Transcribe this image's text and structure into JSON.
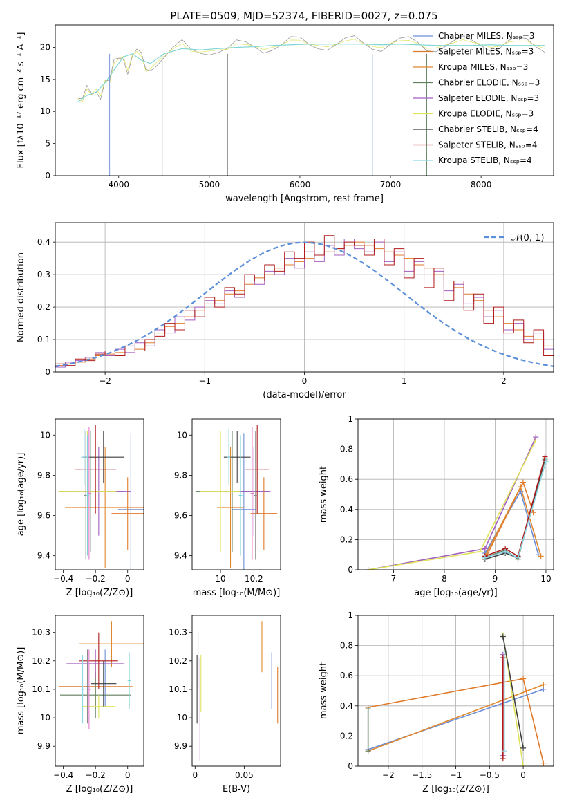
{
  "figure": {
    "title": "PLATE=0509, MJD=52374, FIBERID=0027, z=0.075"
  },
  "colors": {
    "grid": "#b0b0b0",
    "gauss": "#5b8fd9",
    "series": [
      "#6b8dd6",
      "#e07a2b",
      "#e0882e",
      "#5f7f5f",
      "#a35dc0",
      "#dfe35a",
      "#3f3f3f",
      "#b01c1c",
      "#8dd8e5",
      "#e47ccb",
      "#8a8a8a",
      "#7fd6d6"
    ]
  },
  "chart_data": [
    {
      "id": "spectrum",
      "type": "line",
      "title": "PLATE=0509, MJD=52374, FIBERID=0027, z=0.075",
      "xlabel": "wavelength [Angstrom, rest frame]",
      "ylabel": "Flux [fλ10⁻¹⁷ erg cm⁻² s⁻¹ A⁻¹]",
      "xlim": [
        3300,
        8800
      ],
      "ylim": [
        0,
        23.5
      ],
      "xticks": [
        4000,
        5000,
        6000,
        7000,
        8000
      ],
      "yticks": [
        0,
        5,
        10,
        15,
        20
      ],
      "grid": false,
      "legend_position": "top-right",
      "legend": [
        "Chabrier MILES, N_SSP=3",
        "Salpeter MILES, N_SSP=3",
        "Kroupa MILES, N_SSP=3",
        "Chabrier ELODIE, N_SSP=3",
        "Salpeter ELODIE, N_SSP=3",
        "Kroupa ELODIE, N_SSP=3",
        "Chabrier STELIB, N_SSP=4",
        "Salpeter STELIB, N_SSP=4",
        "Kroupa STELIB, N_SSP=4"
      ],
      "data_curve": {
        "x": [
          3550,
          3600,
          3650,
          3700,
          3750,
          3800,
          3850,
          3900,
          3950,
          4000,
          4050,
          4100,
          4150,
          4200,
          4250,
          4300,
          4350,
          4400,
          4500,
          4600,
          4700,
          4800,
          4900,
          5000,
          5100,
          5200,
          5300,
          5400,
          5500,
          5600,
          5700,
          5800,
          5900,
          6000,
          6100,
          6200,
          6300,
          6400,
          6500,
          6600,
          6700,
          6800,
          6900,
          7000,
          7100,
          7200,
          7300,
          7400,
          7500,
          7600,
          7700,
          7800,
          7900,
          8000,
          8100,
          8200,
          8300,
          8400,
          8500,
          8600,
          8700
        ],
        "y": [
          12,
          11,
          13,
          12.5,
          14,
          13,
          15,
          14,
          17,
          18,
          19,
          17,
          19,
          19,
          18,
          16,
          17,
          18,
          19,
          19.5,
          20,
          19,
          19.5,
          20,
          20,
          19.5,
          20,
          20,
          20.3,
          20.2,
          20.5,
          20.3,
          20.6,
          20.6,
          20.5,
          20.8,
          20.6,
          20.5,
          20.5,
          20.7,
          20.5,
          20.6,
          20.5,
          20.8,
          20.6,
          20.5,
          20.4,
          20.2,
          20.5,
          20.6,
          20.4,
          20.6,
          20.5,
          20.8,
          20.6,
          20.5,
          20.6,
          20.4,
          20.6,
          20.5,
          20.4
        ]
      },
      "model_curve": {
        "x": [
          3550,
          3650,
          3750,
          3850,
          3950,
          4050,
          4150,
          4250,
          4350,
          4500,
          4700,
          4900,
          5100,
          5300,
          5500,
          5700,
          5900,
          6100,
          6300,
          6500,
          6700,
          6900,
          7100,
          7300,
          7500,
          7700,
          7900,
          8100,
          8300,
          8500,
          8700
        ],
        "y": [
          11.5,
          12.5,
          13,
          14.5,
          16.5,
          18.5,
          19,
          18,
          17.5,
          19,
          19.8,
          19.6,
          19.8,
          20,
          20.1,
          20.3,
          20.4,
          20.5,
          20.5,
          20.5,
          20.5,
          20.4,
          20.5,
          20.4,
          20.3,
          20.3,
          20.3,
          20.4,
          20.3,
          20.3,
          20.3
        ]
      },
      "spikes": [
        {
          "x": 3900,
          "y": 0
        },
        {
          "x": 4480,
          "y": 0
        },
        {
          "x": 5200,
          "y": 0
        },
        {
          "x": 6800,
          "y": 0
        },
        {
          "x": 7400,
          "y": 0
        }
      ]
    },
    {
      "id": "residuals",
      "type": "line",
      "xlabel": "(data-model)/error",
      "ylabel": "Normed distribution",
      "xlim": [
        -2.5,
        2.5
      ],
      "ylim": [
        0,
        0.46
      ],
      "xticks": [
        -2,
        -1,
        0,
        1,
        2
      ],
      "yticks": [
        0.0,
        0.1,
        0.2,
        0.3,
        0.4
      ],
      "grid": true,
      "legend_position": "top-right",
      "legend": [
        "𝒩(0, 1)"
      ],
      "bin_edges_start": -2.5,
      "bin_width": 0.1,
      "hist": [
        [
          0.02,
          0.025,
          0.03,
          0.04,
          0.05,
          0.055,
          0.06,
          0.065,
          0.07,
          0.09,
          0.12,
          0.14,
          0.15,
          0.17,
          0.19,
          0.21,
          0.22,
          0.24,
          0.25,
          0.27,
          0.29,
          0.3,
          0.32,
          0.33,
          0.34,
          0.35,
          0.36,
          0.37,
          0.38,
          0.39,
          0.4,
          0.39,
          0.38,
          0.37,
          0.36,
          0.35,
          0.33,
          0.32,
          0.3,
          0.28,
          0.26,
          0.24,
          0.22,
          0.19,
          0.17,
          0.15,
          0.13,
          0.11,
          0.1,
          0.08
        ],
        [
          0.015,
          0.03,
          0.035,
          0.045,
          0.06,
          0.05,
          0.07,
          0.06,
          0.09,
          0.08,
          0.13,
          0.12,
          0.17,
          0.16,
          0.2,
          0.22,
          0.21,
          0.25,
          0.23,
          0.28,
          0.27,
          0.31,
          0.3,
          0.35,
          0.32,
          0.37,
          0.34,
          0.39,
          0.36,
          0.41,
          0.38,
          0.37,
          0.4,
          0.34,
          0.37,
          0.31,
          0.34,
          0.28,
          0.31,
          0.25,
          0.27,
          0.21,
          0.23,
          0.17,
          0.19,
          0.13,
          0.15,
          0.1,
          0.12,
          0.07
        ],
        [
          0.025,
          0.02,
          0.04,
          0.035,
          0.055,
          0.065,
          0.05,
          0.08,
          0.065,
          0.1,
          0.11,
          0.15,
          0.13,
          0.19,
          0.17,
          0.23,
          0.2,
          0.26,
          0.24,
          0.3,
          0.28,
          0.33,
          0.31,
          0.37,
          0.35,
          0.4,
          0.36,
          0.42,
          0.38,
          0.4,
          0.39,
          0.36,
          0.41,
          0.33,
          0.38,
          0.29,
          0.35,
          0.26,
          0.32,
          0.22,
          0.28,
          0.19,
          0.24,
          0.15,
          0.2,
          0.12,
          0.16,
          0.09,
          0.13,
          0.05
        ]
      ],
      "gaussian": {
        "mean": 0,
        "sigma": 1
      }
    },
    {
      "id": "z-age",
      "type": "scatter",
      "xlabel": "Z [log₁₀(Z/Z⊙)]",
      "ylabel": "age  [log₁₀(age/yr)]",
      "xlim": [
        -0.45,
        0.1
      ],
      "ylim": [
        9.33,
        10.08
      ],
      "xticks": [
        -0.4,
        -0.2,
        0.0
      ],
      "yticks": [
        9.4,
        9.6,
        9.8,
        10.0
      ],
      "points": [
        {
          "x": 0.02,
          "y": 9.63,
          "xe": 0.08,
          "ye": 0.38
        },
        {
          "x": 0.0,
          "y": 9.61,
          "xe": 0.1,
          "ye": 0.18
        },
        {
          "x": -0.14,
          "y": 9.64,
          "xe": 0.25,
          "ye": 0.3
        },
        {
          "x": -0.23,
          "y": 9.72,
          "xe": 0.2,
          "ye": 0.3
        },
        {
          "x": -0.18,
          "y": 9.72,
          "xe": 0.2,
          "ye": 0.22
        },
        {
          "x": -0.25,
          "y": 9.72,
          "xe": 0.18,
          "ye": 0.3
        },
        {
          "x": -0.15,
          "y": 9.89,
          "xe": 0.13,
          "ye": 0.13
        },
        {
          "x": -0.2,
          "y": 9.83,
          "xe": 0.13,
          "ye": 0.22
        },
        {
          "x": -0.27,
          "y": 9.89,
          "xe": 0.02,
          "ye": 0.14
        },
        {
          "x": -0.24,
          "y": 9.71,
          "xe": 0.01,
          "ye": 0.33
        },
        {
          "x": -0.26,
          "y": 9.7,
          "xe": 0.01,
          "ye": 0.32
        },
        {
          "x": -0.25,
          "y": 9.7,
          "xe": 0.01,
          "ye": 0.3
        }
      ]
    },
    {
      "id": "mass-age",
      "type": "scatter",
      "xlabel": "mass [log₁₀(M/M⊙)]",
      "ylabel": "",
      "xlim": [
        9.83,
        10.36
      ],
      "ylim": [
        9.33,
        10.08
      ],
      "xticks": [
        10.0,
        10.2
      ],
      "yticks": [
        9.4,
        9.6,
        9.8,
        10.0
      ],
      "points": [
        {
          "x": 10.14,
          "y": 9.63,
          "xe": 0.07,
          "ye": 0.38
        },
        {
          "x": 10.26,
          "y": 9.61,
          "xe": 0.08,
          "ye": 0.18
        },
        {
          "x": 10.06,
          "y": 9.64,
          "xe": 0.08,
          "ye": 0.3
        },
        {
          "x": 10.07,
          "y": 9.72,
          "xe": 0.22,
          "ye": 0.3
        },
        {
          "x": 10.2,
          "y": 9.72,
          "xe": 0.1,
          "ye": 0.22
        },
        {
          "x": 10.0,
          "y": 9.72,
          "xe": 0.12,
          "ye": 0.3
        },
        {
          "x": 10.1,
          "y": 9.89,
          "xe": 0.08,
          "ye": 0.13
        },
        {
          "x": 10.22,
          "y": 9.83,
          "xe": 0.07,
          "ye": 0.22
        },
        {
          "x": 10.05,
          "y": 9.89,
          "xe": 0.01,
          "ye": 0.14
        },
        {
          "x": 10.19,
          "y": 9.71,
          "xe": 0.01,
          "ye": 0.33
        },
        {
          "x": 10.21,
          "y": 9.7,
          "xe": 0.01,
          "ye": 0.32
        },
        {
          "x": 10.12,
          "y": 9.7,
          "xe": 0.01,
          "ye": 0.3
        }
      ]
    },
    {
      "id": "age-weight",
      "type": "line",
      "xlabel": "age  [log₁₀(age/yr)]",
      "ylabel": "mass weight",
      "xlim": [
        6.3,
        10.15
      ],
      "ylim": [
        0,
        1.0
      ],
      "xticks": [
        7,
        8,
        9,
        10
      ],
      "yticks": [
        0.0,
        0.2,
        0.4,
        0.6,
        0.8,
        1.0
      ],
      "grid": true,
      "series": [
        {
          "x": [
            8.8,
            9.5,
            9.85
          ],
          "y": [
            0.11,
            0.52,
            0.1
          ]
        },
        {
          "x": [
            8.8,
            9.55,
            9.75
          ],
          "y": [
            0.07,
            0.58,
            0.38
          ]
        },
        {
          "x": [
            8.8,
            9.5,
            9.9
          ],
          "y": [
            0.09,
            0.55,
            0.09
          ]
        },
        {
          "x": [
            8.8,
            9.2,
            9.45,
            9.98
          ],
          "y": [
            0.08,
            0.13,
            0.07,
            0.73
          ]
        },
        {
          "x": [
            6.5,
            8.8,
            9.8
          ],
          "y": [
            0.0,
            0.14,
            0.88
          ]
        },
        {
          "x": [
            6.5,
            8.7,
            9.8
          ],
          "y": [
            0.0,
            0.12,
            0.86
          ]
        },
        {
          "x": [
            8.8,
            9.2,
            9.45,
            9.98
          ],
          "y": [
            0.07,
            0.11,
            0.08,
            0.74
          ]
        },
        {
          "x": [
            8.8,
            9.2,
            9.45,
            9.98
          ],
          "y": [
            0.09,
            0.14,
            0.09,
            0.75
          ]
        },
        {
          "x": [
            8.8,
            9.2,
            9.45,
            10.0
          ],
          "y": [
            0.08,
            0.12,
            0.08,
            0.72
          ]
        }
      ]
    },
    {
      "id": "z-mass",
      "type": "scatter",
      "xlabel": "Z [log₁₀(Z/Z⊙)]",
      "ylabel": "mass [log₁₀(M/M⊙)]",
      "xlim": [
        -0.45,
        0.1
      ],
      "ylim": [
        9.83,
        10.36
      ],
      "xticks": [
        -0.4,
        -0.2,
        0.0
      ],
      "yticks": [
        9.9,
        10.0,
        10.1,
        10.2,
        10.3
      ],
      "points": [
        {
          "x": -0.14,
          "y": 10.14,
          "xe": 0.18,
          "ye": 0.1
        },
        {
          "x": -0.2,
          "y": 10.11,
          "xe": 0.23,
          "ye": 0.08
        },
        {
          "x": -0.1,
          "y": 10.26,
          "xe": 0.2,
          "ye": 0.08
        },
        {
          "x": -0.2,
          "y": 10.08,
          "xe": 0.22,
          "ye": 0.08
        },
        {
          "x": -0.2,
          "y": 10.19,
          "xe": 0.18,
          "ye": 0.05
        },
        {
          "x": -0.18,
          "y": 10.04,
          "xe": 0.1,
          "ye": 0.04
        },
        {
          "x": -0.15,
          "y": 10.12,
          "xe": 0.08,
          "ye": 0.08
        },
        {
          "x": -0.18,
          "y": 10.2,
          "xe": 0.12,
          "ye": 0.1
        },
        {
          "x": -0.28,
          "y": 10.1,
          "xe": 0.01,
          "ye": 0.12
        },
        {
          "x": -0.24,
          "y": 10.1,
          "xe": 0.01,
          "ye": 0.14
        },
        {
          "x": -0.25,
          "y": 10.11,
          "xe": 0.01,
          "ye": 0.13
        },
        {
          "x": 0.01,
          "y": 10.13,
          "xe": 0.01,
          "ye": 0.1
        }
      ]
    },
    {
      "id": "ebv-mass",
      "type": "scatter",
      "xlabel": "E(B-V)",
      "ylabel": "",
      "xlim": [
        -0.003,
        0.087
      ],
      "ylim": [
        9.83,
        10.36
      ],
      "xticks": [
        0.0,
        0.05
      ],
      "yticks": [
        9.9,
        10.0,
        10.1,
        10.2,
        10.3
      ],
      "points": [
        {
          "x": 0.078,
          "y": 10.13,
          "ye": 0.1
        },
        {
          "x": 0.084,
          "y": 10.08,
          "ye": 0.1
        },
        {
          "x": 0.068,
          "y": 10.25,
          "ye": 0.09
        },
        {
          "x": 0.003,
          "y": 10.2,
          "ye": 0.1
        },
        {
          "x": 0.005,
          "y": 10.03,
          "ye": 0.18
        },
        {
          "x": 0.006,
          "y": 10.12,
          "ye": 0.1
        },
        {
          "x": 0.002,
          "y": 10.1,
          "ye": 0.12
        }
      ]
    },
    {
      "id": "z-weight",
      "type": "line",
      "xlabel": "Z [log₁₀(Z/Z⊙)]",
      "ylabel": "mass weight",
      "xlim": [
        -2.45,
        0.45
      ],
      "ylim": [
        0,
        1.0
      ],
      "xticks": [
        -2.0,
        -1.5,
        -1.0,
        -0.5,
        0.0
      ],
      "yticks": [
        0.0,
        0.2,
        0.4,
        0.6,
        0.8,
        1.0
      ],
      "grid": true,
      "series": [
        {
          "x": [
            -2.3,
            0.3
          ],
          "y": [
            0.11,
            0.51
          ]
        },
        {
          "x": [
            -2.3,
            0.0,
            0.3
          ],
          "y": [
            0.39,
            0.58,
            0.02
          ]
        },
        {
          "x": [
            -2.3,
            0.3
          ],
          "y": [
            0.1,
            0.54
          ]
        },
        {
          "x": [
            -2.3,
            -2.3
          ],
          "y": [
            0.1,
            0.38
          ]
        },
        {
          "x": [
            -0.3,
            -0.3
          ],
          "y": [
            0.07,
            0.74
          ]
        },
        {
          "x": [
            -0.3,
            0.0
          ],
          "y": [
            0.87,
            0.0
          ]
        },
        {
          "x": [
            -0.3,
            0.0
          ],
          "y": [
            0.86,
            0.12
          ]
        },
        {
          "x": [
            -0.3,
            -0.3
          ],
          "y": [
            0.05,
            0.72
          ]
        },
        {
          "x": [
            -0.28,
            -0.28
          ],
          "y": [
            0.1,
            0.75
          ]
        }
      ]
    }
  ]
}
